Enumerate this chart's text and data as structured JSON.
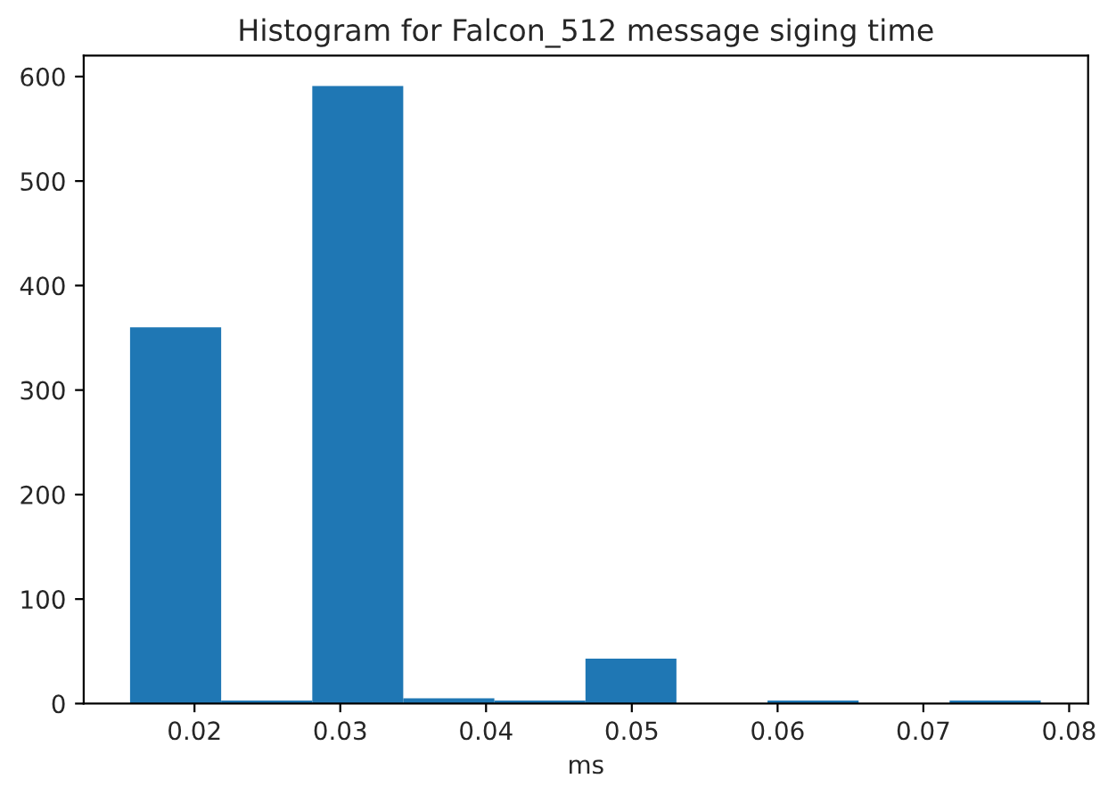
{
  "chart_data": {
    "type": "histogram",
    "title": "Histogram for Falcon_512 message siging time",
    "xlabel": "ms",
    "bins": [
      0.01558,
      0.02183,
      0.02808,
      0.03432,
      0.04057,
      0.04682,
      0.05306,
      0.05931,
      0.06556,
      0.0718,
      0.07805
    ],
    "values": [
      360,
      3,
      591,
      5,
      3,
      43,
      0,
      3,
      0,
      3
    ],
    "color": "#1f77b4",
    "xlim": [
      0.0124,
      0.0813
    ],
    "xticks": [
      {
        "value": 0.02,
        "label": "0.02"
      },
      {
        "value": 0.03,
        "label": "0.03"
      },
      {
        "value": 0.04,
        "label": "0.04"
      },
      {
        "value": 0.05,
        "label": "0.05"
      },
      {
        "value": 0.06,
        "label": "0.06"
      },
      {
        "value": 0.07,
        "label": "0.07"
      },
      {
        "value": 0.08,
        "label": "0.08"
      }
    ],
    "ylim": [
      0,
      620
    ],
    "yticks": [
      0,
      100,
      200,
      300,
      400,
      500,
      600
    ],
    "grid": false
  }
}
